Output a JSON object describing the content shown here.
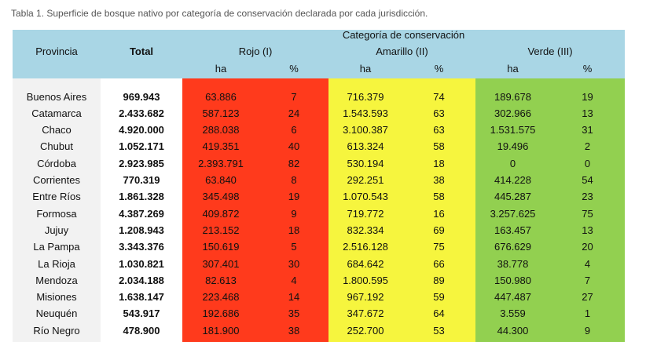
{
  "caption": "Tabla 1. Superficie de bosque nativo por categoría de conservación declarada por cada jurisdicción.",
  "header": {
    "columns": [
      "Provincia",
      "Total"
    ],
    "group": "Categoría de conservación",
    "categories": [
      "Rojo (I)",
      "Amarillo (II)",
      "Verde (III)"
    ],
    "subheaders": [
      "ha",
      "%",
      "ha",
      "%",
      "ha",
      "%"
    ]
  },
  "table": {
    "rows": [
      [
        "Buenos Aires",
        "969.943",
        "63.886",
        "7",
        "716.379",
        "74",
        "189.678",
        "19"
      ],
      [
        "Catamarca",
        "2.433.682",
        "587.123",
        "24",
        "1.543.593",
        "63",
        "302.966",
        "13"
      ],
      [
        "Chaco",
        "4.920.000",
        "288.038",
        "6",
        "3.100.387",
        "63",
        "1.531.575",
        "31"
      ],
      [
        "Chubut",
        "1.052.171",
        "419.351",
        "40",
        "613.324",
        "58",
        "19.496",
        "2"
      ],
      [
        "Córdoba",
        "2.923.985",
        "2.393.791",
        "82",
        "530.194",
        "18",
        "0",
        "0"
      ],
      [
        "Corrientes",
        "770.319",
        "63.840",
        "8",
        "292.251",
        "38",
        "414.228",
        "54"
      ],
      [
        "Entre Ríos",
        "1.861.328",
        "345.498",
        "19",
        "1.070.543",
        "58",
        "445.287",
        "23"
      ],
      [
        "Formosa",
        "4.387.269",
        "409.872",
        "9",
        "719.772",
        "16",
        "3.257.625",
        "75"
      ],
      [
        "Jujuy",
        "1.208.943",
        "213.152",
        "18",
        "832.334",
        "69",
        "163.457",
        "13"
      ],
      [
        "La Pampa",
        "3.343.376",
        "150.619",
        "5",
        "2.516.128",
        "75",
        "676.629",
        "20"
      ],
      [
        "La Rioja",
        "1.030.821",
        "307.401",
        "30",
        "684.642",
        "66",
        "38.778",
        "4"
      ],
      [
        "Mendoza",
        "2.034.188",
        "82.613",
        "4",
        "1.800.595",
        "89",
        "150.980",
        "7"
      ],
      [
        "Misiones",
        "1.638.147",
        "223.468",
        "14",
        "967.192",
        "59",
        "447.487",
        "27"
      ],
      [
        "Neuquén",
        "543.917",
        "192.686",
        "35",
        "347.672",
        "64",
        "3.559",
        "1"
      ],
      [
        "Río Negro",
        "478.900",
        "181.900",
        "38",
        "252.700",
        "53",
        "44.300",
        "9"
      ]
    ]
  }
}
